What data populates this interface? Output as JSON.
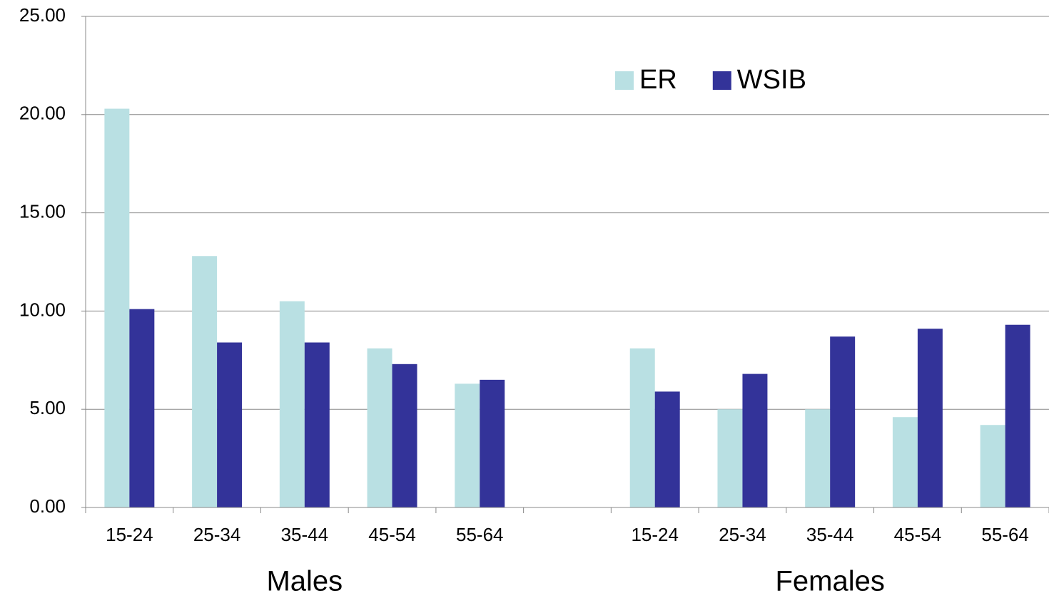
{
  "chart_data": {
    "type": "bar",
    "categories": [
      "15-24",
      "25-34",
      "35-44",
      "45-54",
      "55-64",
      null,
      "15-24",
      "25-34",
      "35-44",
      "45-54",
      "55-64"
    ],
    "group_labels": [
      "Males",
      "Females"
    ],
    "series": [
      {
        "name": "ER",
        "color": "#b9e0e3",
        "values": [
          20.3,
          12.8,
          10.5,
          8.1,
          6.3,
          null,
          8.1,
          5.0,
          5.0,
          4.6,
          4.2
        ]
      },
      {
        "name": "WSIB",
        "color": "#333399",
        "values": [
          10.1,
          8.4,
          8.4,
          7.3,
          6.5,
          null,
          5.9,
          6.8,
          8.7,
          9.1,
          9.3
        ]
      }
    ],
    "ylim": [
      0,
      25
    ],
    "yticks": [
      {
        "value": 0,
        "label": "0.00"
      },
      {
        "value": 5,
        "label": "5.00"
      },
      {
        "value": 10,
        "label": "10.00"
      },
      {
        "value": 15,
        "label": "15.00"
      },
      {
        "value": 20,
        "label": "20.00"
      },
      {
        "value": 25,
        "label": "25.00"
      }
    ],
    "grid": true,
    "legend": "top-right"
  }
}
